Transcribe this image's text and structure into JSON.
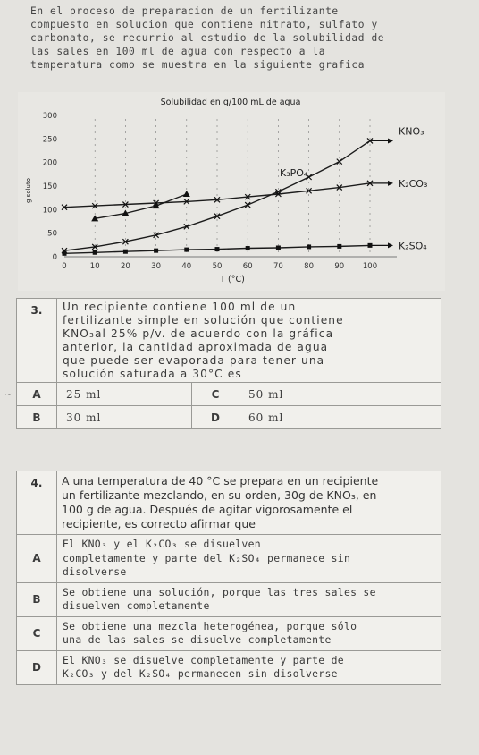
{
  "intro": {
    "lines": [
      "En el proceso de preparacion de un fertilizante",
      "compuesto en solucion que contiene nitrato, sulfato y",
      "carbonato, se recurrio al estudio de la solubilidad de",
      "las sales en 100 ml de agua con respecto a la",
      "temperatura como se muestra en la siguiente grafica"
    ]
  },
  "chart_data": {
    "type": "line",
    "title": "Solubilidad en g/100 mL de agua",
    "xlabel": "T (°C)",
    "ylabel": "g soluto",
    "xlim": [
      0,
      100
    ],
    "ylim": [
      0,
      300
    ],
    "x_ticks": [
      "0",
      "10",
      "20",
      "30",
      "40",
      "50",
      "60",
      "70",
      "80",
      "90",
      "100"
    ],
    "y_ticks": [
      "0",
      "50",
      "100",
      "150",
      "200",
      "250",
      "300"
    ],
    "series": [
      {
        "name": "KNO₃",
        "marker": "x",
        "x": [
          0,
          10,
          20,
          30,
          40,
          50,
          60,
          70,
          80,
          90,
          100
        ],
        "y": [
          13,
          21,
          32,
          46,
          64,
          86,
          110,
          138,
          169,
          202,
          246
        ]
      },
      {
        "name": "K₂CO₃",
        "marker": "x",
        "x": [
          0,
          10,
          20,
          30,
          40,
          50,
          60,
          70,
          80,
          90,
          100
        ],
        "y": [
          105,
          108,
          111,
          114,
          117,
          121,
          127,
          133,
          140,
          147,
          156
        ]
      },
      {
        "name": "K₃PO₄",
        "marker": "triangle",
        "x": [
          10,
          20,
          30,
          40
        ],
        "y": [
          81,
          92,
          108,
          133
        ]
      },
      {
        "name": "K₂SO₄",
        "marker": "square",
        "x": [
          0,
          10,
          20,
          30,
          40,
          50,
          60,
          70,
          80,
          90,
          100
        ],
        "y": [
          7,
          9,
          11,
          13,
          15,
          16,
          18,
          19,
          21,
          22,
          24
        ]
      }
    ]
  },
  "q3": {
    "number": "3.",
    "stem_lines": [
      "Un recipiente contiene 100 ml de un",
      "fertilizante simple en solución que contiene",
      "KNO₃al 25% p/v. de acuerdo con la gráfica",
      "anterior, la cantidad aproximada de agua",
      "que puede ser evaporada para tener una",
      "solución saturada a 30°C es"
    ],
    "options": [
      {
        "letter": "A",
        "text": "25 ml"
      },
      {
        "letter": "C",
        "text": "50 ml"
      },
      {
        "letter": "B",
        "text": "30 ml"
      },
      {
        "letter": "D",
        "text": "60 ml"
      }
    ]
  },
  "q4": {
    "number": "4.",
    "stem_lines": [
      "A una temperatura de 40 °C se prepara en un recipiente",
      "un fertilizante mezclando, en su orden, 30g de KNO₃, en",
      "100 g de agua. Después de agitar vigorosamente el",
      "recipiente, es correcto afirmar que"
    ],
    "options": [
      {
        "letter": "A",
        "lines": [
          "El KNO₃ y el K₂CO₃ se disuelven",
          "completamente y parte del K₂SO₄ permanece sin",
          "disolverse"
        ]
      },
      {
        "letter": "B",
        "lines": [
          "Se obtiene una solución, porque las tres sales se",
          "disuelven completamente"
        ]
      },
      {
        "letter": "C",
        "lines": [
          "Se obtiene una mezcla heterogénea, porque sólo",
          "una de las sales se disuelve completamente"
        ]
      },
      {
        "letter": "D",
        "lines": [
          "El KNO₃ se disuelve completamente y parte de",
          "K₂CO₃ y del K₂SO₄ permanecen sin disolverse"
        ]
      }
    ]
  }
}
